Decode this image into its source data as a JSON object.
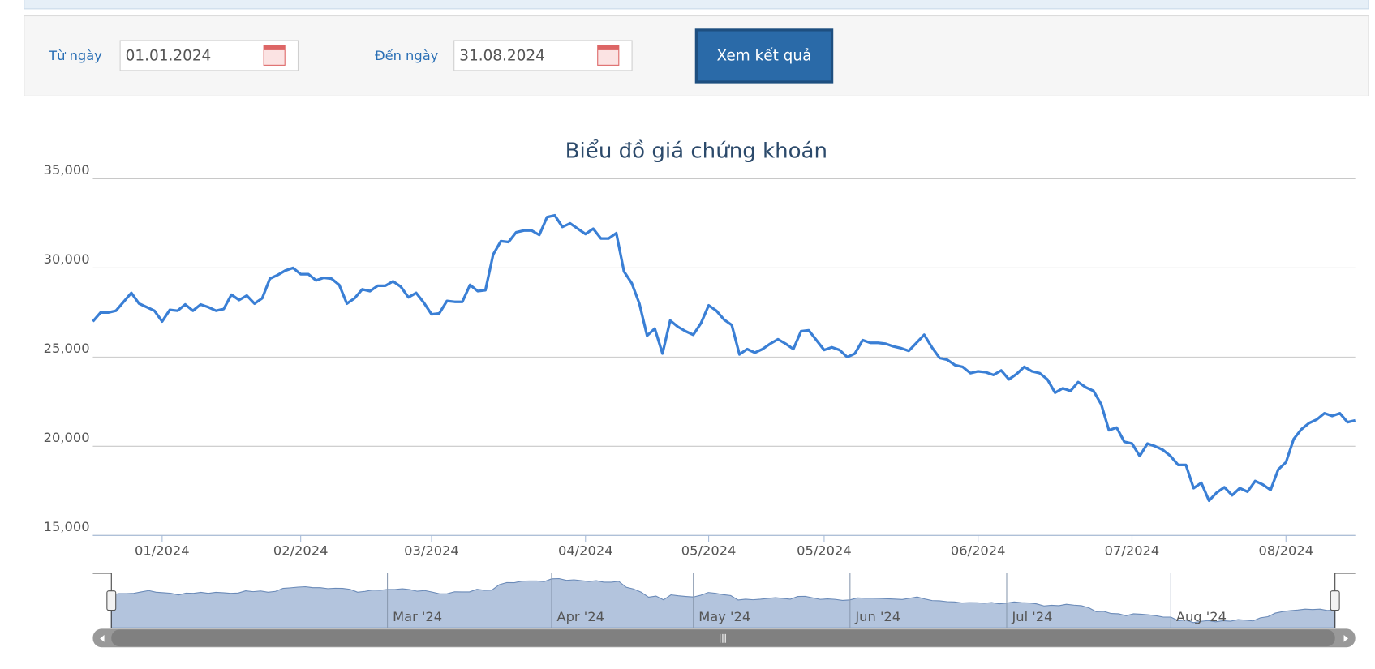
{
  "form": {
    "from_label": "Từ ngày",
    "from_value": "01.01.2024",
    "to_label": "Đến ngày",
    "to_value": "31.08.2024",
    "button": "Xem kết quả"
  },
  "chart_data": {
    "type": "line",
    "title": "Biểu đồ giá chứng khoán",
    "series": [
      {
        "color": "#3a7fd5",
        "values": [
          27000,
          27500,
          27500,
          27600,
          28100,
          28600,
          28000,
          27800,
          27600,
          27000,
          27650,
          27600,
          27950,
          27600,
          27950,
          27800,
          27600,
          27700,
          28500,
          28200,
          28450,
          28000,
          28300,
          29400,
          29600,
          29850,
          30000,
          29650,
          29650,
          29300,
          29450,
          29400,
          29050,
          28000,
          28300,
          28800,
          28700,
          29000,
          29000,
          29250,
          28950,
          28350,
          28600,
          28050,
          27400,
          27450,
          28150,
          28100,
          28100,
          29050,
          28700,
          28750,
          30750,
          31500,
          31450,
          32000,
          32100,
          32100,
          31850,
          32850,
          32950,
          32300,
          32500,
          32200,
          31900,
          32200,
          31650,
          31650,
          31950,
          29800,
          29150,
          28000,
          26200,
          26600,
          25200,
          27050,
          26700,
          26450,
          26250,
          26900,
          27900,
          27600,
          27100,
          26800,
          25150,
          25450,
          25250,
          25450,
          25750,
          26000,
          25750,
          25450,
          26450,
          26500,
          25950,
          25400,
          25550,
          25400,
          25000,
          25200,
          25950,
          25800,
          25800,
          25750,
          25600,
          25500,
          25350,
          25800,
          26250,
          25550,
          24950,
          24850,
          24550,
          24450,
          24100,
          24200,
          24150,
          24000,
          24250,
          23750,
          24050,
          24450,
          24200,
          24100,
          23750,
          23000,
          23250,
          23100,
          23600,
          23300,
          23100,
          22350,
          20900,
          21050,
          20250,
          20150,
          19450,
          20150,
          20000,
          19800,
          19450,
          18950,
          18950,
          17650,
          17950,
          16950,
          17400,
          17700,
          17250,
          17650,
          17450,
          18050,
          17850,
          17550,
          18700,
          19100,
          20400,
          20950,
          21300,
          21500,
          21850,
          21700,
          21850,
          21350,
          21450
        ]
      }
    ],
    "xlim": [
      0,
      164
    ],
    "xticks": [
      {
        "value": 9,
        "label": "01/2024"
      },
      {
        "value": 27,
        "label": "02/2024"
      },
      {
        "value": 44,
        "label": "03/2024"
      },
      {
        "value": 64,
        "label": "04/2024"
      },
      {
        "value": 80,
        "label": "05/2024"
      },
      {
        "value": 95,
        "label": "05/2024"
      },
      {
        "value": 115,
        "label": "06/2024"
      },
      {
        "value": 135,
        "label": "07/2024"
      },
      {
        "value": 155,
        "label": "08/2024"
      }
    ],
    "ylim": [
      15000,
      35000
    ],
    "yticks": [
      {
        "value": 15000,
        "label": "15,000"
      },
      {
        "value": 20000,
        "label": "20,000"
      },
      {
        "value": 25000,
        "label": "25,000"
      },
      {
        "value": 30000,
        "label": "30,000"
      },
      {
        "value": 35000,
        "label": "35,000"
      }
    ],
    "grid": true,
    "navigator": {
      "xticks": [
        {
          "value": 37,
          "label": "Mar '24"
        },
        {
          "value": 59,
          "label": "Apr '24"
        },
        {
          "value": 78,
          "label": "May '24"
        },
        {
          "value": 99,
          "label": "Jun '24"
        },
        {
          "value": 120,
          "label": "Jul '24"
        },
        {
          "value": 142,
          "label": "Aug '24"
        }
      ]
    }
  }
}
